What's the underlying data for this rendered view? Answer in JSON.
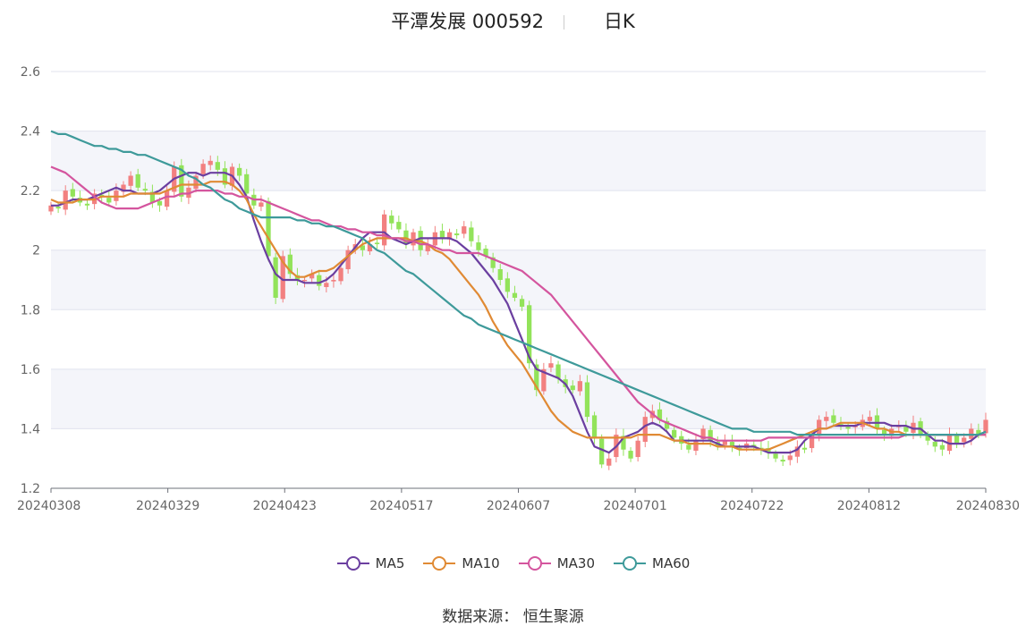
{
  "header": {
    "title": "平潭发展 000592",
    "period": "日K"
  },
  "source": "数据来源： 恒生聚源",
  "chart_data": {
    "type": "candlestick",
    "ylim": [
      1.2,
      2.6
    ],
    "yticks": [
      "1.2",
      "1.4",
      "1.6",
      "1.8",
      "2",
      "2.2",
      "2.4",
      "2.6"
    ],
    "xticks": [
      "20240308",
      "20240329",
      "20240423",
      "20240517",
      "20240607",
      "20240701",
      "20240722",
      "20240812",
      "20240830"
    ],
    "colors": {
      "up": "#f28080",
      "down": "#92e35a",
      "MA5": "#6b3fa0",
      "MA10": "#e08a34",
      "MA30": "#d4559e",
      "MA60": "#3e9a9a"
    },
    "close": [
      2.15,
      2.14,
      2.2,
      2.18,
      2.16,
      2.15,
      2.19,
      2.18,
      2.16,
      2.2,
      2.22,
      2.25,
      2.21,
      2.2,
      2.16,
      2.15,
      2.2,
      2.28,
      2.18,
      2.21,
      2.25,
      2.29,
      2.3,
      2.27,
      2.22,
      2.28,
      2.25,
      2.19,
      2.15,
      2.16,
      1.98,
      1.84,
      1.98,
      1.92,
      1.9,
      1.9,
      1.92,
      1.88,
      1.89,
      1.9,
      1.94,
      2.0,
      2.02,
      2.0,
      2.02,
      2.02,
      2.12,
      2.09,
      2.07,
      2.02,
      2.06,
      2.0,
      2.02,
      2.06,
      2.04,
      2.06,
      2.05,
      2.08,
      2.03,
      2.0,
      1.98,
      1.94,
      1.9,
      1.86,
      1.84,
      1.81,
      1.62,
      1.53,
      1.6,
      1.62,
      1.57,
      1.54,
      1.53,
      1.56,
      1.44,
      1.37,
      1.28,
      1.3,
      1.38,
      1.33,
      1.3,
      1.36,
      1.44,
      1.46,
      1.43,
      1.4,
      1.37,
      1.35,
      1.33,
      1.36,
      1.4,
      1.36,
      1.34,
      1.36,
      1.34,
      1.33,
      1.35,
      1.34,
      1.33,
      1.32,
      1.3,
      1.29,
      1.31,
      1.34,
      1.33,
      1.38,
      1.43,
      1.44,
      1.42,
      1.41,
      1.4,
      1.41,
      1.43,
      1.44,
      1.4,
      1.38,
      1.4,
      1.41,
      1.39,
      1.42,
      1.38,
      1.36,
      1.34,
      1.33,
      1.38,
      1.35,
      1.37,
      1.4,
      1.38,
      1.43
    ],
    "series": [
      {
        "name": "MA5",
        "values": [
          2.15,
          2.15,
          2.16,
          2.17,
          2.17,
          2.17,
          2.18,
          2.19,
          2.2,
          2.21,
          2.2,
          2.2,
          2.19,
          2.19,
          2.19,
          2.2,
          2.22,
          2.24,
          2.25,
          2.26,
          2.26,
          2.25,
          2.26,
          2.26,
          2.26,
          2.25,
          2.22,
          2.18,
          2.1,
          2.03,
          1.97,
          1.92,
          1.9,
          1.9,
          1.9,
          1.89,
          1.89,
          1.89,
          1.9,
          1.92,
          1.95,
          1.98,
          2.01,
          2.04,
          2.06,
          2.06,
          2.06,
          2.04,
          2.03,
          2.02,
          2.03,
          2.04,
          2.04,
          2.04,
          2.04,
          2.04,
          2.03,
          2.01,
          1.99,
          1.96,
          1.93,
          1.9,
          1.86,
          1.82,
          1.76,
          1.7,
          1.64,
          1.6,
          1.59,
          1.58,
          1.57,
          1.55,
          1.51,
          1.45,
          1.39,
          1.34,
          1.33,
          1.32,
          1.34,
          1.37,
          1.38,
          1.39,
          1.41,
          1.42,
          1.41,
          1.39,
          1.36,
          1.36,
          1.36,
          1.36,
          1.36,
          1.36,
          1.35,
          1.34,
          1.34,
          1.34,
          1.34,
          1.34,
          1.33,
          1.32,
          1.32,
          1.32,
          1.32,
          1.33,
          1.36,
          1.38,
          1.4,
          1.4,
          1.41,
          1.41,
          1.41,
          1.41,
          1.42,
          1.42,
          1.42,
          1.42,
          1.41,
          1.41,
          1.41,
          1.4,
          1.4,
          1.38,
          1.36,
          1.36,
          1.35,
          1.35,
          1.35,
          1.36,
          1.38,
          1.39
        ]
      },
      {
        "name": "MA10",
        "values": [
          2.17,
          2.16,
          2.16,
          2.16,
          2.17,
          2.17,
          2.17,
          2.18,
          2.18,
          2.18,
          2.18,
          2.19,
          2.19,
          2.19,
          2.19,
          2.19,
          2.2,
          2.21,
          2.22,
          2.22,
          2.22,
          2.22,
          2.23,
          2.23,
          2.23,
          2.22,
          2.2,
          2.17,
          2.12,
          2.08,
          2.04,
          2.0,
          1.96,
          1.93,
          1.91,
          1.91,
          1.92,
          1.93,
          1.93,
          1.94,
          1.96,
          1.98,
          2.0,
          2.02,
          2.03,
          2.04,
          2.04,
          2.04,
          2.04,
          2.04,
          2.03,
          2.03,
          2.02,
          2.0,
          1.99,
          1.97,
          1.94,
          1.91,
          1.88,
          1.85,
          1.81,
          1.76,
          1.72,
          1.68,
          1.65,
          1.62,
          1.58,
          1.54,
          1.5,
          1.46,
          1.43,
          1.41,
          1.39,
          1.38,
          1.37,
          1.37,
          1.37,
          1.37,
          1.37,
          1.37,
          1.37,
          1.38,
          1.38,
          1.38,
          1.38,
          1.37,
          1.36,
          1.36,
          1.35,
          1.35,
          1.35,
          1.35,
          1.34,
          1.34,
          1.34,
          1.33,
          1.33,
          1.33,
          1.33,
          1.33,
          1.34,
          1.35,
          1.36,
          1.37,
          1.38,
          1.39,
          1.4,
          1.4,
          1.41,
          1.42,
          1.42,
          1.42,
          1.42,
          1.41,
          1.4,
          1.4,
          1.39,
          1.39,
          1.38,
          1.38,
          1.38,
          1.38,
          1.38,
          1.38,
          1.38,
          1.38,
          1.38,
          1.38,
          1.38,
          1.38
        ]
      },
      {
        "name": "MA30",
        "values": [
          2.28,
          2.27,
          2.26,
          2.24,
          2.22,
          2.2,
          2.18,
          2.16,
          2.15,
          2.14,
          2.14,
          2.14,
          2.14,
          2.15,
          2.16,
          2.17,
          2.18,
          2.18,
          2.19,
          2.19,
          2.2,
          2.2,
          2.2,
          2.2,
          2.19,
          2.19,
          2.18,
          2.18,
          2.17,
          2.17,
          2.16,
          2.15,
          2.14,
          2.13,
          2.12,
          2.11,
          2.1,
          2.1,
          2.09,
          2.08,
          2.08,
          2.07,
          2.07,
          2.06,
          2.06,
          2.05,
          2.05,
          2.04,
          2.04,
          2.03,
          2.03,
          2.02,
          2.02,
          2.01,
          2.0,
          2.0,
          1.99,
          1.99,
          1.99,
          1.99,
          1.98,
          1.97,
          1.96,
          1.95,
          1.94,
          1.93,
          1.91,
          1.89,
          1.87,
          1.85,
          1.82,
          1.79,
          1.76,
          1.73,
          1.7,
          1.67,
          1.64,
          1.61,
          1.58,
          1.55,
          1.52,
          1.49,
          1.47,
          1.45,
          1.43,
          1.42,
          1.41,
          1.4,
          1.39,
          1.38,
          1.37,
          1.37,
          1.36,
          1.36,
          1.36,
          1.36,
          1.36,
          1.36,
          1.36,
          1.37,
          1.37,
          1.37,
          1.37,
          1.37,
          1.37,
          1.37,
          1.37,
          1.37,
          1.37,
          1.37,
          1.37,
          1.37,
          1.37,
          1.37,
          1.37,
          1.37,
          1.37,
          1.37,
          1.38,
          1.38,
          1.38,
          1.38,
          1.38,
          1.38,
          1.38,
          1.38,
          1.38,
          1.38,
          1.38,
          1.38
        ]
      },
      {
        "name": "MA60",
        "values": [
          2.4,
          2.39,
          2.39,
          2.38,
          2.37,
          2.36,
          2.35,
          2.35,
          2.34,
          2.34,
          2.33,
          2.33,
          2.32,
          2.32,
          2.31,
          2.3,
          2.29,
          2.28,
          2.27,
          2.25,
          2.24,
          2.22,
          2.21,
          2.19,
          2.17,
          2.16,
          2.14,
          2.13,
          2.12,
          2.11,
          2.11,
          2.11,
          2.11,
          2.11,
          2.1,
          2.1,
          2.09,
          2.09,
          2.08,
          2.08,
          2.07,
          2.06,
          2.05,
          2.04,
          2.02,
          2.0,
          1.99,
          1.97,
          1.95,
          1.93,
          1.92,
          1.9,
          1.88,
          1.86,
          1.84,
          1.82,
          1.8,
          1.78,
          1.77,
          1.75,
          1.74,
          1.73,
          1.72,
          1.71,
          1.7,
          1.69,
          1.68,
          1.67,
          1.66,
          1.65,
          1.64,
          1.63,
          1.62,
          1.61,
          1.6,
          1.59,
          1.58,
          1.57,
          1.56,
          1.55,
          1.54,
          1.53,
          1.52,
          1.51,
          1.5,
          1.49,
          1.48,
          1.47,
          1.46,
          1.45,
          1.44,
          1.43,
          1.42,
          1.41,
          1.4,
          1.4,
          1.4,
          1.39,
          1.39,
          1.39,
          1.39,
          1.39,
          1.39,
          1.38,
          1.38,
          1.38,
          1.38,
          1.38,
          1.38,
          1.38,
          1.38,
          1.38,
          1.38,
          1.38,
          1.38,
          1.38,
          1.38,
          1.38,
          1.38,
          1.38,
          1.38,
          1.38,
          1.38,
          1.38,
          1.38,
          1.38,
          1.38,
          1.38,
          1.38,
          1.39
        ]
      }
    ],
    "legend": [
      "MA5",
      "MA10",
      "MA30",
      "MA60"
    ],
    "legend_position": "bottom-center",
    "grid": true
  }
}
